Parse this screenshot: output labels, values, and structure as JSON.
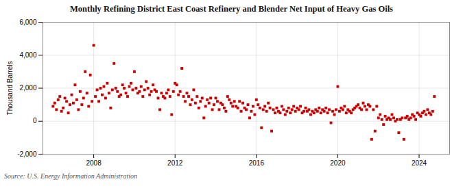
{
  "chart_data": {
    "type": "scatter",
    "title": "Monthly Refining District East Coast Refinery and Blender Net Input of Heavy Gas Oils",
    "ylabel": "Thousand Barrels",
    "source": "Source: U.S. Energy Information Administration",
    "color": "#cc0000",
    "marker": "square",
    "grid": true,
    "xlim": [
      2005.5,
      2025.5
    ],
    "xticks": [
      2008,
      2012,
      2016,
      2020,
      2024
    ],
    "ylim": [
      -2000,
      6000
    ],
    "yticks": [
      {
        "value": -2000,
        "label": "-2,000"
      },
      0,
      {
        "value": 2000,
        "label": "2,000"
      },
      {
        "value": 4000,
        "label": "4,000"
      },
      {
        "value": 6000,
        "label": "6,000"
      }
    ],
    "x": [
      2006.0,
      2006.083,
      2006.167,
      2006.25,
      2006.333,
      2006.417,
      2006.5,
      2006.583,
      2006.667,
      2006.75,
      2006.833,
      2006.917,
      2007.0,
      2007.083,
      2007.167,
      2007.25,
      2007.333,
      2007.417,
      2007.5,
      2007.583,
      2007.667,
      2007.75,
      2007.833,
      2007.917,
      2008.0,
      2008.083,
      2008.167,
      2008.25,
      2008.333,
      2008.417,
      2008.5,
      2008.583,
      2008.667,
      2008.75,
      2008.833,
      2008.917,
      2009.0,
      2009.083,
      2009.167,
      2009.25,
      2009.333,
      2009.417,
      2009.5,
      2009.583,
      2009.667,
      2009.75,
      2009.833,
      2009.917,
      2010.0,
      2010.083,
      2010.167,
      2010.25,
      2010.333,
      2010.417,
      2010.5,
      2010.583,
      2010.667,
      2010.75,
      2010.833,
      2010.917,
      2011.0,
      2011.083,
      2011.167,
      2011.25,
      2011.333,
      2011.417,
      2011.5,
      2011.583,
      2011.667,
      2011.75,
      2011.833,
      2011.917,
      2012.0,
      2012.083,
      2012.167,
      2012.25,
      2012.333,
      2012.417,
      2012.5,
      2012.583,
      2012.667,
      2012.75,
      2012.833,
      2012.917,
      2013.0,
      2013.083,
      2013.167,
      2013.25,
      2013.333,
      2013.417,
      2013.5,
      2013.583,
      2013.667,
      2013.75,
      2013.833,
      2013.917,
      2014.0,
      2014.083,
      2014.167,
      2014.25,
      2014.333,
      2014.417,
      2014.5,
      2014.583,
      2014.667,
      2014.75,
      2014.833,
      2014.917,
      2015.0,
      2015.083,
      2015.167,
      2015.25,
      2015.333,
      2015.417,
      2015.5,
      2015.583,
      2015.667,
      2015.75,
      2015.833,
      2015.917,
      2016.0,
      2016.083,
      2016.167,
      2016.25,
      2016.333,
      2016.417,
      2016.5,
      2016.583,
      2016.667,
      2016.75,
      2016.833,
      2016.917,
      2017.0,
      2017.083,
      2017.167,
      2017.25,
      2017.333,
      2017.417,
      2017.5,
      2017.583,
      2017.667,
      2017.75,
      2017.833,
      2017.917,
      2018.0,
      2018.083,
      2018.167,
      2018.25,
      2018.333,
      2018.417,
      2018.5,
      2018.583,
      2018.667,
      2018.75,
      2018.833,
      2018.917,
      2019.0,
      2019.083,
      2019.167,
      2019.25,
      2019.333,
      2019.417,
      2019.5,
      2019.583,
      2019.667,
      2019.75,
      2019.833,
      2019.917,
      2020.0,
      2020.083,
      2020.167,
      2020.25,
      2020.333,
      2020.417,
      2020.5,
      2020.583,
      2020.667,
      2020.75,
      2020.833,
      2020.917,
      2021.0,
      2021.083,
      2021.167,
      2021.25,
      2021.333,
      2021.417,
      2021.5,
      2021.583,
      2021.667,
      2021.75,
      2021.833,
      2021.917,
      2022.0,
      2022.083,
      2022.167,
      2022.25,
      2022.333,
      2022.417,
      2022.5,
      2022.583,
      2022.667,
      2022.75,
      2022.833,
      2022.917,
      2023.0,
      2023.083,
      2023.167,
      2023.25,
      2023.333,
      2023.417,
      2023.5,
      2023.583,
      2023.667,
      2023.75,
      2023.833,
      2023.917,
      2024.0,
      2024.083,
      2024.167,
      2024.25,
      2024.333,
      2024.417,
      2024.5,
      2024.583,
      2024.667,
      2024.75
    ],
    "values": [
      900,
      1100,
      700,
      1300,
      1500,
      600,
      800,
      1400,
      1200,
      500,
      1000,
      1600,
      1100,
      2200,
      1300,
      700,
      1800,
      1000,
      1400,
      3000,
      1700,
      900,
      2800,
      1200,
      4600,
      1500,
      1900,
      1200,
      2000,
      1600,
      2100,
      1400,
      2300,
      1700,
      800,
      1900,
      3500,
      2000,
      1800,
      1500,
      1600,
      2200,
      2000,
      1700,
      1500,
      2100,
      2300,
      1900,
      3000,
      2000,
      1700,
      1800,
      2100,
      1500,
      1900,
      2400,
      2000,
      1600,
      1800,
      2200,
      1900,
      1800,
      1400,
      700,
      1700,
      1500,
      1400,
      1700,
      1900,
      1500,
      400,
      1800,
      2300,
      2200,
      1600,
      1800,
      3200,
      1500,
      1200,
      1700,
      1500,
      1000,
      1300,
      1900,
      1100,
      1500,
      800,
      1200,
      1400,
      200,
      900,
      1300,
      1100,
      1400,
      700,
      1000,
      1400,
      1200,
      700,
      1100,
      1000,
      800,
      600,
      1500,
      1300,
      1100,
      900,
      1200,
      900,
      800,
      1200,
      600,
      1100,
      800,
      700,
      1000,
      200,
      600,
      900,
      400,
      1300,
      1000,
      800,
      -400,
      700,
      900,
      600,
      1100,
      800,
      -600,
      700,
      500,
      800,
      600,
      500,
      900,
      700,
      400,
      600,
      800,
      500,
      700,
      900,
      600,
      800,
      700,
      900,
      500,
      600,
      800,
      600,
      700,
      400,
      600,
      500,
      700,
      600,
      800,
      500,
      700,
      600,
      800,
      500,
      700,
      -100,
      600,
      400,
      700,
      2100,
      600,
      800,
      700,
      900,
      500,
      700,
      600,
      500,
      700,
      800,
      900,
      1000,
      800,
      700,
      1100,
      900,
      700,
      1000,
      900,
      -1100,
      700,
      -600,
      900,
      200,
      400,
      100,
      -200,
      300,
      100,
      200,
      100,
      400,
      200,
      0,
      100,
      -700,
      100,
      200,
      -1100,
      200,
      300,
      100,
      200,
      400,
      300,
      100,
      500,
      400,
      300,
      500,
      600,
      400,
      700,
      500,
      400,
      600,
      1500
    ]
  }
}
